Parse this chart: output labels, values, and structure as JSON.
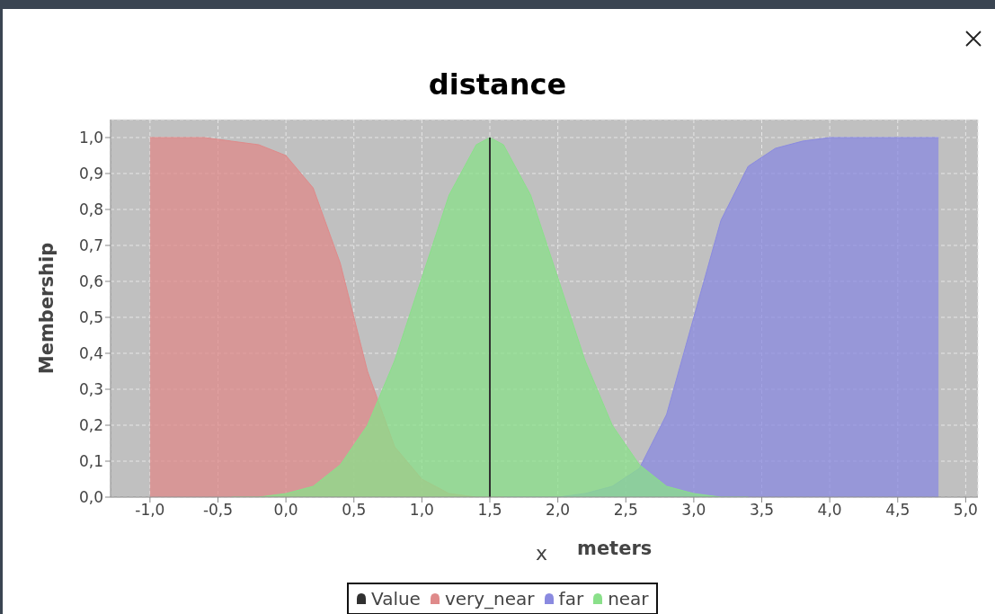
{
  "chart_data": {
    "type": "area",
    "title": "distance",
    "xlabel": "x",
    "ylabel": "Membership",
    "annotations": [
      "meters"
    ],
    "series": [
      {
        "name": "Value",
        "type": "line",
        "color": "#303030",
        "x": [
          1.5,
          1.5
        ],
        "values": [
          0,
          1
        ]
      },
      {
        "name": "very_near",
        "color": "#df8a8a",
        "x": [
          -1.0,
          -0.8,
          -0.6,
          -0.4,
          -0.2,
          0.0,
          0.2,
          0.4,
          0.6,
          0.8,
          1.0,
          1.2,
          1.4,
          1.6
        ],
        "values": [
          1.0,
          1.0,
          1.0,
          0.99,
          0.98,
          0.95,
          0.86,
          0.65,
          0.35,
          0.14,
          0.05,
          0.01,
          0.0,
          0.0
        ]
      },
      {
        "name": "far",
        "color": "#8a8ae0",
        "x": [
          1.6,
          1.8,
          2.0,
          2.2,
          2.4,
          2.6,
          2.8,
          3.0,
          3.2,
          3.4,
          3.6,
          3.8,
          4.0,
          4.2,
          4.4,
          4.6,
          4.8
        ],
        "values": [
          0.0,
          0.0,
          0.0,
          0.01,
          0.03,
          0.08,
          0.23,
          0.5,
          0.77,
          0.92,
          0.97,
          0.99,
          1.0,
          1.0,
          1.0,
          1.0,
          1.0
        ]
      },
      {
        "name": "near",
        "color": "#8ae08a",
        "x": [
          -0.4,
          -0.2,
          0.0,
          0.2,
          0.4,
          0.6,
          0.8,
          1.0,
          1.2,
          1.4,
          1.5,
          1.6,
          1.8,
          2.0,
          2.2,
          2.4,
          2.6,
          2.8,
          3.0,
          3.2,
          3.4
        ],
        "values": [
          0.0,
          0.0,
          0.01,
          0.03,
          0.09,
          0.2,
          0.38,
          0.61,
          0.84,
          0.98,
          1.0,
          0.98,
          0.84,
          0.61,
          0.38,
          0.2,
          0.09,
          0.03,
          0.01,
          0.0,
          0.0
        ]
      }
    ],
    "xlim": [
      -1.29,
      5.09
    ],
    "ylim": [
      0,
      1.05
    ],
    "xticks": [
      {
        "value": -1,
        "label": "-1,0"
      },
      {
        "value": -0.5,
        "label": "-0,5"
      },
      {
        "value": 0,
        "label": "0,0"
      },
      {
        "value": 0.5,
        "label": "0,5"
      },
      {
        "value": 1,
        "label": "1,0"
      },
      {
        "value": 1.5,
        "label": "1,5"
      },
      {
        "value": 2,
        "label": "2,0"
      },
      {
        "value": 2.5,
        "label": "2,5"
      },
      {
        "value": 3,
        "label": "3,0"
      },
      {
        "value": 3.5,
        "label": "3,5"
      },
      {
        "value": 4,
        "label": "4,0"
      },
      {
        "value": 4.5,
        "label": "4,5"
      },
      {
        "value": 5,
        "label": "5,0"
      }
    ],
    "yticks": [
      {
        "value": 0,
        "label": "0,0"
      },
      {
        "value": 0.1,
        "label": "0,1"
      },
      {
        "value": 0.2,
        "label": "0,2"
      },
      {
        "value": 0.3,
        "label": "0,3"
      },
      {
        "value": 0.4,
        "label": "0,4"
      },
      {
        "value": 0.5,
        "label": "0,5"
      },
      {
        "value": 0.6,
        "label": "0,6"
      },
      {
        "value": 0.7,
        "label": "0,7"
      },
      {
        "value": 0.8,
        "label": "0,8"
      },
      {
        "value": 0.9,
        "label": "0,9"
      },
      {
        "value": 1,
        "label": "1,0"
      }
    ],
    "grid": true,
    "legend": "bottom"
  }
}
